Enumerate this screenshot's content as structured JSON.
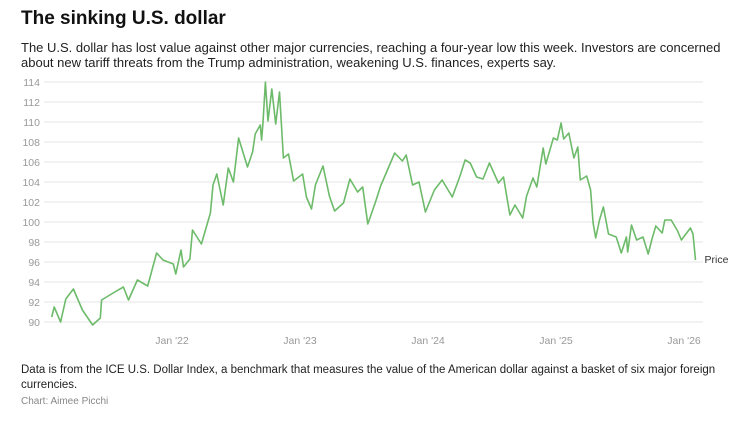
{
  "header": {
    "title": "The sinking U.S. dollar",
    "subtitle": "The U.S. dollar has lost value against other major currencies, reaching a four-year low this week. Investors are concerned about new tariff threats from the Trump administration, weakening U.S. finances, experts say."
  },
  "footer": {
    "note": "Data is from the ICE U.S. Dollar Index, a benchmark that measures the value of the American dollar against a basket of six major foreign currencies.",
    "credit": "Chart: Aimee Picchi"
  },
  "chart_data": {
    "type": "line",
    "title": "The sinking U.S. dollar",
    "xlabel": "",
    "ylabel": "",
    "ylim": [
      90,
      114
    ],
    "yticks": [
      "90",
      "92",
      "94",
      "96",
      "98",
      "100",
      "102",
      "104",
      "106",
      "108",
      "110",
      "112",
      "114"
    ],
    "xticks": [
      {
        "t": 2022,
        "label": "Jan '22"
      },
      {
        "t": 2023,
        "label": "Jan '23"
      },
      {
        "t": 2024,
        "label": "Jan '24"
      },
      {
        "t": 2025,
        "label": "Jan '25"
      },
      {
        "t": 2026,
        "label": "Jan '26"
      }
    ],
    "grid": true,
    "color": "#6dbb6a",
    "series": [
      {
        "name": "Price",
        "points": [
          [
            2021.06,
            90.5
          ],
          [
            2021.08,
            91.5
          ],
          [
            2021.13,
            90.0
          ],
          [
            2021.17,
            92.3
          ],
          [
            2021.23,
            93.3
          ],
          [
            2021.3,
            91.2
          ],
          [
            2021.38,
            89.7
          ],
          [
            2021.44,
            90.4
          ],
          [
            2021.45,
            92.2
          ],
          [
            2021.54,
            92.9
          ],
          [
            2021.62,
            93.5
          ],
          [
            2021.66,
            92.2
          ],
          [
            2021.73,
            94.2
          ],
          [
            2021.81,
            93.6
          ],
          [
            2021.88,
            96.9
          ],
          [
            2021.93,
            96.2
          ],
          [
            2022.01,
            95.8
          ],
          [
            2022.03,
            94.8
          ],
          [
            2022.07,
            97.2
          ],
          [
            2022.09,
            95.5
          ],
          [
            2022.14,
            96.3
          ],
          [
            2022.16,
            99.2
          ],
          [
            2022.23,
            97.8
          ],
          [
            2022.3,
            100.9
          ],
          [
            2022.32,
            103.7
          ],
          [
            2022.35,
            104.8
          ],
          [
            2022.4,
            101.7
          ],
          [
            2022.44,
            105.4
          ],
          [
            2022.48,
            104.0
          ],
          [
            2022.52,
            108.4
          ],
          [
            2022.59,
            105.5
          ],
          [
            2022.63,
            107.0
          ],
          [
            2022.65,
            108.8
          ],
          [
            2022.69,
            109.7
          ],
          [
            2022.7,
            108.2
          ],
          [
            2022.71,
            109.8
          ],
          [
            2022.73,
            114.0
          ],
          [
            2022.75,
            110.1
          ],
          [
            2022.78,
            113.3
          ],
          [
            2022.81,
            109.8
          ],
          [
            2022.84,
            113.0
          ],
          [
            2022.87,
            106.4
          ],
          [
            2022.91,
            106.8
          ],
          [
            2022.95,
            104.1
          ],
          [
            2023.02,
            104.8
          ],
          [
            2023.05,
            102.5
          ],
          [
            2023.09,
            101.3
          ],
          [
            2023.12,
            103.7
          ],
          [
            2023.18,
            105.6
          ],
          [
            2023.23,
            102.6
          ],
          [
            2023.27,
            101.1
          ],
          [
            2023.34,
            101.9
          ],
          [
            2023.39,
            104.3
          ],
          [
            2023.45,
            103.0
          ],
          [
            2023.49,
            103.5
          ],
          [
            2023.53,
            99.8
          ],
          [
            2023.59,
            102.0
          ],
          [
            2023.63,
            103.6
          ],
          [
            2023.74,
            106.9
          ],
          [
            2023.8,
            106.1
          ],
          [
            2023.83,
            106.7
          ],
          [
            2023.88,
            103.7
          ],
          [
            2023.93,
            104.0
          ],
          [
            2023.98,
            101.0
          ],
          [
            2024.05,
            103.2
          ],
          [
            2024.11,
            104.2
          ],
          [
            2024.19,
            102.5
          ],
          [
            2024.25,
            104.6
          ],
          [
            2024.29,
            106.2
          ],
          [
            2024.33,
            105.9
          ],
          [
            2024.38,
            104.5
          ],
          [
            2024.43,
            104.3
          ],
          [
            2024.48,
            105.9
          ],
          [
            2024.55,
            103.9
          ],
          [
            2024.59,
            104.5
          ],
          [
            2024.64,
            100.7
          ],
          [
            2024.68,
            101.7
          ],
          [
            2024.74,
            100.4
          ],
          [
            2024.77,
            102.6
          ],
          [
            2024.82,
            104.4
          ],
          [
            2024.85,
            103.5
          ],
          [
            2024.9,
            107.4
          ],
          [
            2024.92,
            105.8
          ],
          [
            2024.98,
            108.4
          ],
          [
            2025.01,
            108.2
          ],
          [
            2025.04,
            109.9
          ],
          [
            2025.06,
            108.3
          ],
          [
            2025.1,
            108.9
          ],
          [
            2025.14,
            106.4
          ],
          [
            2025.17,
            107.5
          ],
          [
            2025.19,
            104.2
          ],
          [
            2025.24,
            104.6
          ],
          [
            2025.27,
            103.2
          ],
          [
            2025.29,
            99.9
          ],
          [
            2025.31,
            98.4
          ],
          [
            2025.34,
            100.2
          ],
          [
            2025.37,
            101.5
          ],
          [
            2025.41,
            98.8
          ],
          [
            2025.47,
            98.5
          ],
          [
            2025.51,
            96.9
          ],
          [
            2025.55,
            98.5
          ],
          [
            2025.56,
            97.0
          ],
          [
            2025.59,
            99.7
          ],
          [
            2025.63,
            98.2
          ],
          [
            2025.68,
            98.5
          ],
          [
            2025.72,
            96.8
          ],
          [
            2025.75,
            98.3
          ],
          [
            2025.78,
            99.6
          ],
          [
            2025.83,
            98.9
          ],
          [
            2025.85,
            100.2
          ],
          [
            2025.9,
            100.2
          ],
          [
            2025.95,
            99.1
          ],
          [
            2025.98,
            98.2
          ],
          [
            2026.05,
            99.4
          ],
          [
            2026.07,
            98.8
          ],
          [
            2026.09,
            96.2
          ]
        ]
      }
    ]
  }
}
